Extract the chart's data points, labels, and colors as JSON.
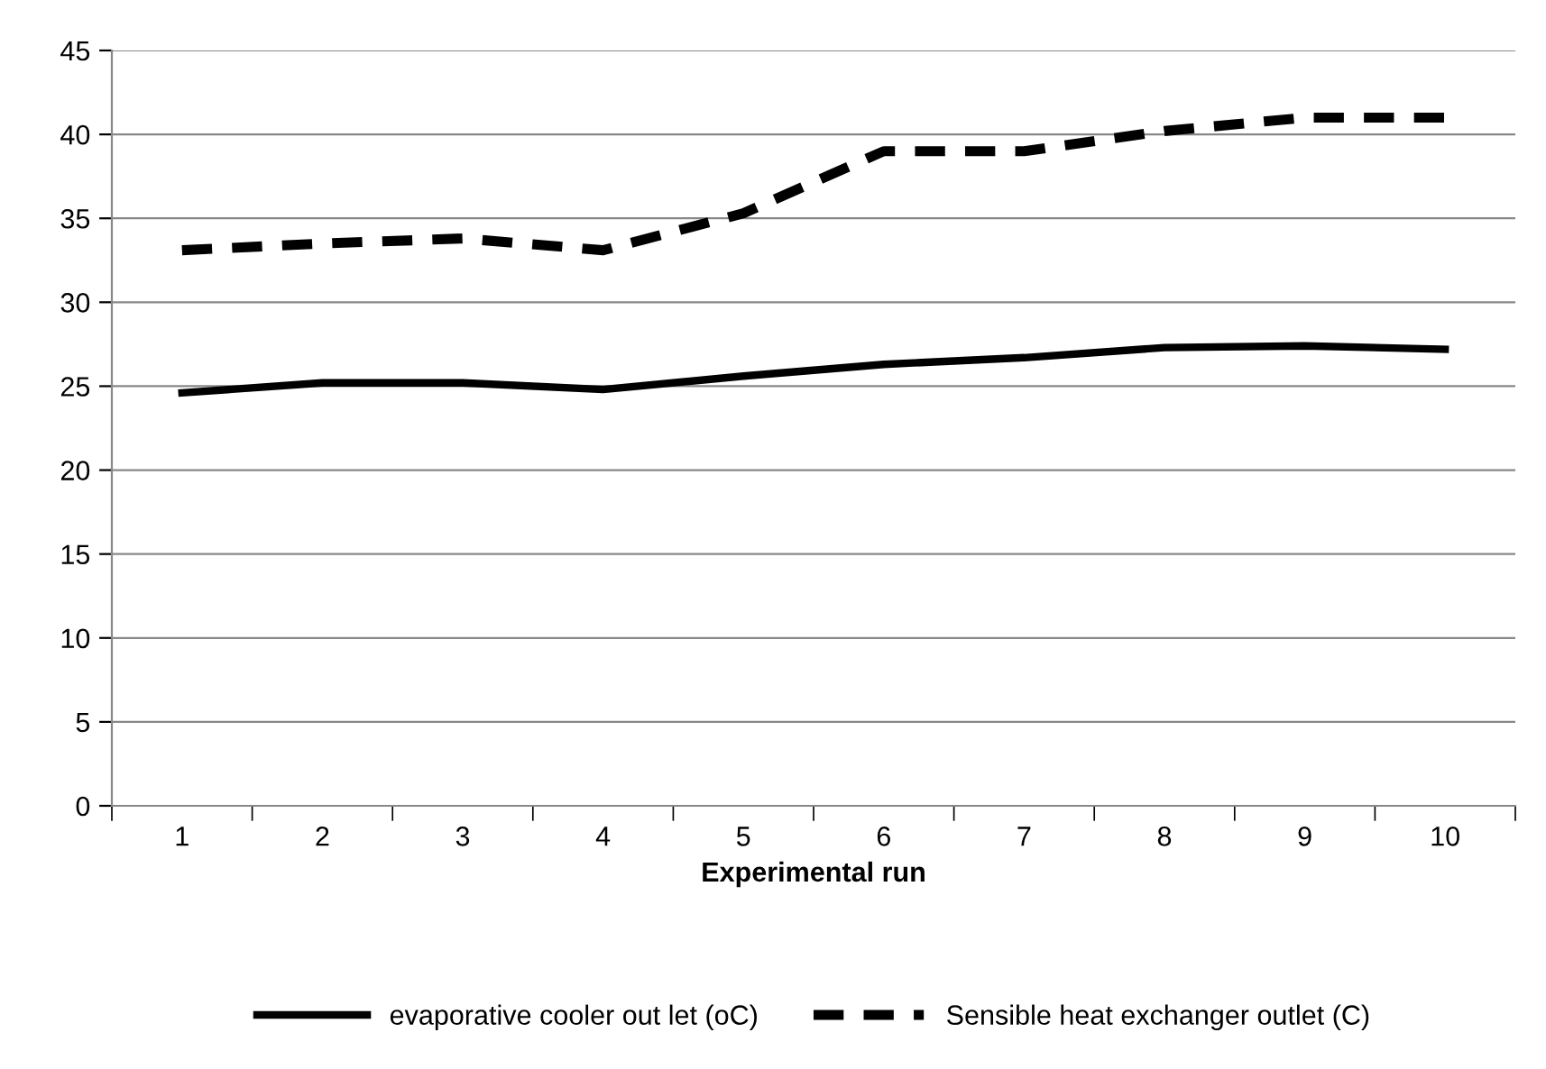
{
  "chart_data": {
    "type": "line",
    "xlabel": "Experimental run",
    "categories": [
      "1",
      "2",
      "3",
      "4",
      "5",
      "6",
      "7",
      "8",
      "9",
      "10"
    ],
    "series": [
      {
        "name": "evaporative cooler out let (oC)",
        "color": "#000000",
        "line_style": "solid",
        "values": [
          24.6,
          25.2,
          25.2,
          24.8,
          25.6,
          26.3,
          26.7,
          27.3,
          27.4,
          27.2
        ]
      },
      {
        "name": "Sensible heat exchanger outlet (C)",
        "color": "#000000",
        "line_style": "dashed",
        "values": [
          33.1,
          33.5,
          33.8,
          33.1,
          35.3,
          39.0,
          39.0,
          40.2,
          41.0,
          41.0
        ]
      }
    ],
    "ylim": [
      0,
      45
    ],
    "yticks": [
      0,
      5,
      10,
      15,
      20,
      25,
      30,
      35,
      40,
      45
    ],
    "grid": "y",
    "legend": "bottom",
    "marker": "none"
  }
}
